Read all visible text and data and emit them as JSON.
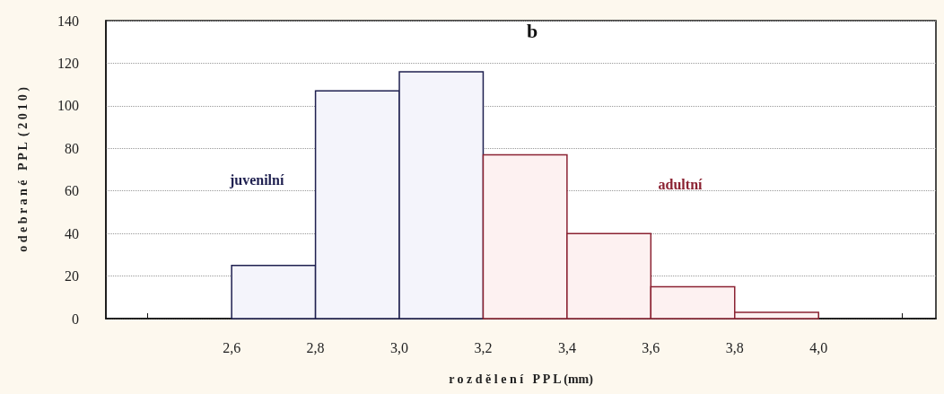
{
  "chart_data": {
    "type": "histogram",
    "title": "b",
    "xlabel": "r o z d ě l e n í   P P L (mm)",
    "ylabel": "o d e b r a n é   P P L  ( 2 0 1 0 )",
    "bins": [
      2.6,
      2.8,
      3.0,
      3.2,
      3.4,
      3.6,
      3.8,
      4.0
    ],
    "series": [
      {
        "name": "juvenilní",
        "color": "#1f2050",
        "values": [
          25,
          107,
          116,
          null,
          null,
          null,
          null
        ]
      },
      {
        "name": "adultní",
        "color": "#8b2232",
        "values": [
          null,
          null,
          null,
          77,
          40,
          15,
          3
        ]
      }
    ],
    "xlim": [
      2.3,
      4.28
    ],
    "xticks": [
      {
        "value": 2.4,
        "label": null
      },
      {
        "value": 2.6,
        "label": "2,6"
      },
      {
        "value": 2.8,
        "label": "2,8"
      },
      {
        "value": 3.0,
        "label": "3,0"
      },
      {
        "value": 3.2,
        "label": "3,2"
      },
      {
        "value": 3.4,
        "label": "3,4"
      },
      {
        "value": 3.6,
        "label": "3,6"
      },
      {
        "value": 3.8,
        "label": "3,8"
      },
      {
        "value": 4.0,
        "label": "4,0"
      },
      {
        "value": 4.2,
        "label": null
      }
    ],
    "ylim": [
      0,
      140
    ],
    "yticks": [
      0,
      20,
      40,
      60,
      80,
      100,
      120,
      140
    ],
    "grid": "y",
    "legend": false
  }
}
